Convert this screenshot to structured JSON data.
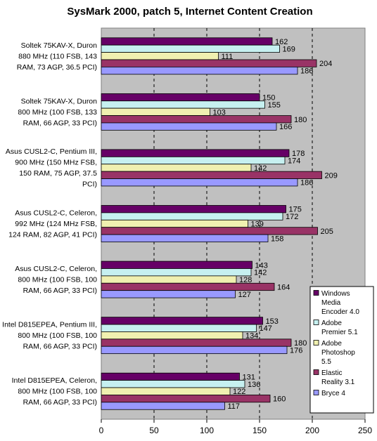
{
  "chart_data": {
    "type": "bar",
    "orientation": "horizontal",
    "title": "SysMark 2000, patch 5, Internet Content Creation",
    "categories": [
      [
        "Soltek 75KAV-X, Duron",
        "880 MHz (110 FSB, 143",
        "RAM, 73 AGP, 36.5 PCI)"
      ],
      [
        "Soltek 75KAV-X, Duron",
        "800 MHz (100 FSB, 133",
        "RAM, 66 AGP, 33 PCI)"
      ],
      [
        "Asus CUSL2-C, Pentium III,",
        "900 MHz (150 MHz FSB,",
        "150 RAM, 75 AGP, 37.5",
        "PCI)"
      ],
      [
        "Asus CUSL2-C, Celeron,",
        "992 MHz (124 MHz FSB,",
        "124 RAM, 82 AGP, 41 PCI)"
      ],
      [
        "Asus CUSL2-C, Celeron,",
        "800 MHz (100 FSB, 100",
        "RAM, 66 AGP, 33 PCI)"
      ],
      [
        "Intel D815EPEA, Pentium III,",
        "800 MHz (100 FSB, 100",
        "RAM, 66 AGP, 33 PCI)"
      ],
      [
        "Intel D815EPEA, Celeron,",
        "800 MHz (100 FSB, 100",
        "RAM, 66 AGP, 33 PCI)"
      ]
    ],
    "series": [
      {
        "name": "Windows Media Encoder 4.0",
        "legend_lines": [
          "Windows",
          "Media",
          "Encoder 4.0"
        ],
        "color": "#660066",
        "values": [
          162,
          150,
          178,
          175,
          143,
          153,
          131
        ]
      },
      {
        "name": "Adobe Premier 5.1",
        "legend_lines": [
          "Adobe",
          "Premier 5.1"
        ],
        "color": "#c6f0f0",
        "values": [
          169,
          155,
          174,
          172,
          142,
          147,
          136
        ]
      },
      {
        "name": "Adobe Photoshop 5.5",
        "legend_lines": [
          "Adobe",
          "Photoshop",
          "5.5"
        ],
        "color": "#f0f0b0",
        "values": [
          111,
          103,
          142,
          139,
          128,
          134,
          122
        ]
      },
      {
        "name": "Elastic Reality 3.1",
        "legend_lines": [
          "Elastic",
          "Reality 3.1"
        ],
        "color": "#993366",
        "values": [
          204,
          180,
          209,
          205,
          164,
          180,
          160
        ]
      },
      {
        "name": "Bryce 4",
        "legend_lines": [
          "Bryce 4"
        ],
        "color": "#9999ff",
        "values": [
          186,
          166,
          186,
          158,
          127,
          176,
          117
        ]
      }
    ],
    "xlim": [
      0,
      250
    ],
    "xticks": [
      0,
      50,
      100,
      150,
      200,
      250
    ],
    "grid": "vertical dashed",
    "plot_background": "#c0c0c0",
    "legend_position": "right-bottom"
  }
}
